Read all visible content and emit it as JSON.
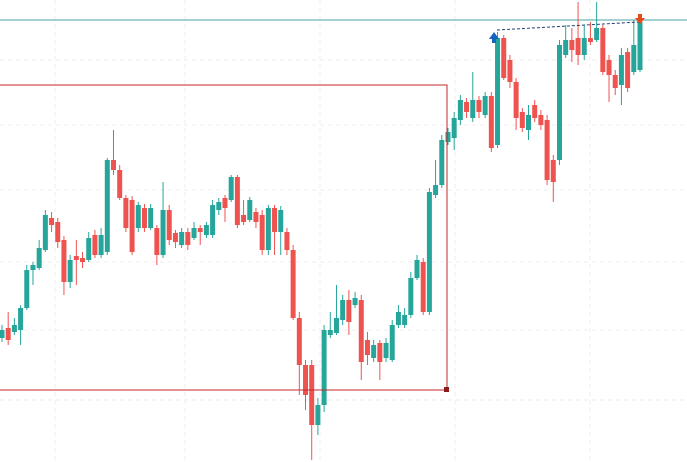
{
  "chart_data": {
    "type": "candlestick",
    "ylim": [
      0,
      462
    ],
    "up_color": "#26a69a",
    "down_color": "#ef5350",
    "level": 442,
    "level_color": "#4aa3a6",
    "open": [
      124,
      134,
      130,
      132,
      154,
      192,
      194,
      212,
      244,
      240,
      222,
      180,
      206,
      204,
      202,
      227,
      207,
      210,
      302,
      292,
      264,
      262,
      234,
      254,
      234,
      234,
      207,
      252,
      229,
      217,
      230,
      224,
      234,
      227,
      227,
      252,
      264,
      262,
      285,
      247,
      242,
      250,
      247,
      212,
      254,
      230,
      230,
      212,
      144,
      97,
      97,
      37,
      57,
      127,
      129,
      142,
      162,
      157,
      162,
      122,
      104,
      119,
      104,
      102,
      137,
      137,
      147,
      184,
      200,
      150,
      267,
      277,
      320,
      324,
      342,
      360,
      344,
      362,
      347,
      366,
      317,
      424,
      402,
      380,
      350,
      332,
      357,
      347,
      342,
      302,
      302,
      407,
      422,
      424,
      407,
      424,
      422,
      434,
      402,
      387,
      377,
      410,
      390,
      392
    ],
    "high": [
      137,
      150,
      144,
      157,
      197,
      200,
      222,
      252,
      250,
      244,
      226,
      207,
      222,
      210,
      230,
      232,
      234,
      304,
      332,
      297,
      267,
      266,
      260,
      258,
      258,
      237,
      280,
      257,
      232,
      234,
      234,
      240,
      237,
      240,
      262,
      264,
      267,
      287,
      287,
      262,
      265,
      254,
      252,
      257,
      257,
      256,
      234,
      217,
      150,
      102,
      102,
      64,
      137,
      150,
      177,
      167,
      172,
      170,
      167,
      130,
      122,
      122,
      124,
      142,
      157,
      154,
      190,
      207,
      204,
      274,
      302,
      327,
      334,
      350,
      367,
      364,
      390,
      366,
      370,
      370,
      430,
      427,
      407,
      384,
      354,
      357,
      362,
      352,
      347,
      307,
      422,
      437,
      434,
      460,
      437,
      440,
      460,
      437,
      407,
      392,
      414,
      414,
      442,
      444
    ],
    "low": [
      120,
      117,
      127,
      117,
      152,
      177,
      192,
      210,
      230,
      214,
      167,
      174,
      177,
      194,
      200,
      204,
      204,
      207,
      287,
      262,
      230,
      207,
      230,
      230,
      232,
      197,
      204,
      217,
      214,
      214,
      212,
      222,
      217,
      224,
      224,
      247,
      240,
      260,
      234,
      237,
      240,
      234,
      207,
      207,
      207,
      207,
      207,
      142,
      67,
      52,
      2,
      27,
      50,
      124,
      127,
      137,
      127,
      154,
      82,
      97,
      100,
      82,
      100,
      100,
      134,
      134,
      144,
      182,
      147,
      147,
      264,
      274,
      317,
      312,
      337,
      344,
      340,
      344,
      344,
      310,
      314,
      382,
      374,
      332,
      330,
      322,
      340,
      332,
      277,
      260,
      297,
      404,
      400,
      397,
      402,
      417,
      420,
      387,
      360,
      367,
      357,
      370,
      387,
      390
    ],
    "close": [
      132,
      122,
      137,
      154,
      192,
      197,
      214,
      247,
      237,
      220,
      180,
      202,
      202,
      200,
      224,
      207,
      227,
      302,
      292,
      264,
      234,
      210,
      257,
      234,
      254,
      207,
      252,
      222,
      220,
      230,
      217,
      234,
      230,
      237,
      257,
      260,
      254,
      285,
      237,
      240,
      262,
      240,
      212,
      254,
      230,
      252,
      212,
      144,
      97,
      67,
      37,
      57,
      132,
      132,
      144,
      162,
      140,
      164,
      100,
      107,
      117,
      100,
      119,
      137,
      150,
      147,
      184,
      202,
      150,
      270,
      277,
      322,
      330,
      344,
      362,
      350,
      362,
      350,
      366,
      314,
      424,
      384,
      380,
      344,
      334,
      347,
      344,
      337,
      282,
      280,
      417,
      422,
      412,
      407,
      424,
      420,
      434,
      390,
      387,
      374,
      407,
      374,
      417,
      440
    ]
  }
}
